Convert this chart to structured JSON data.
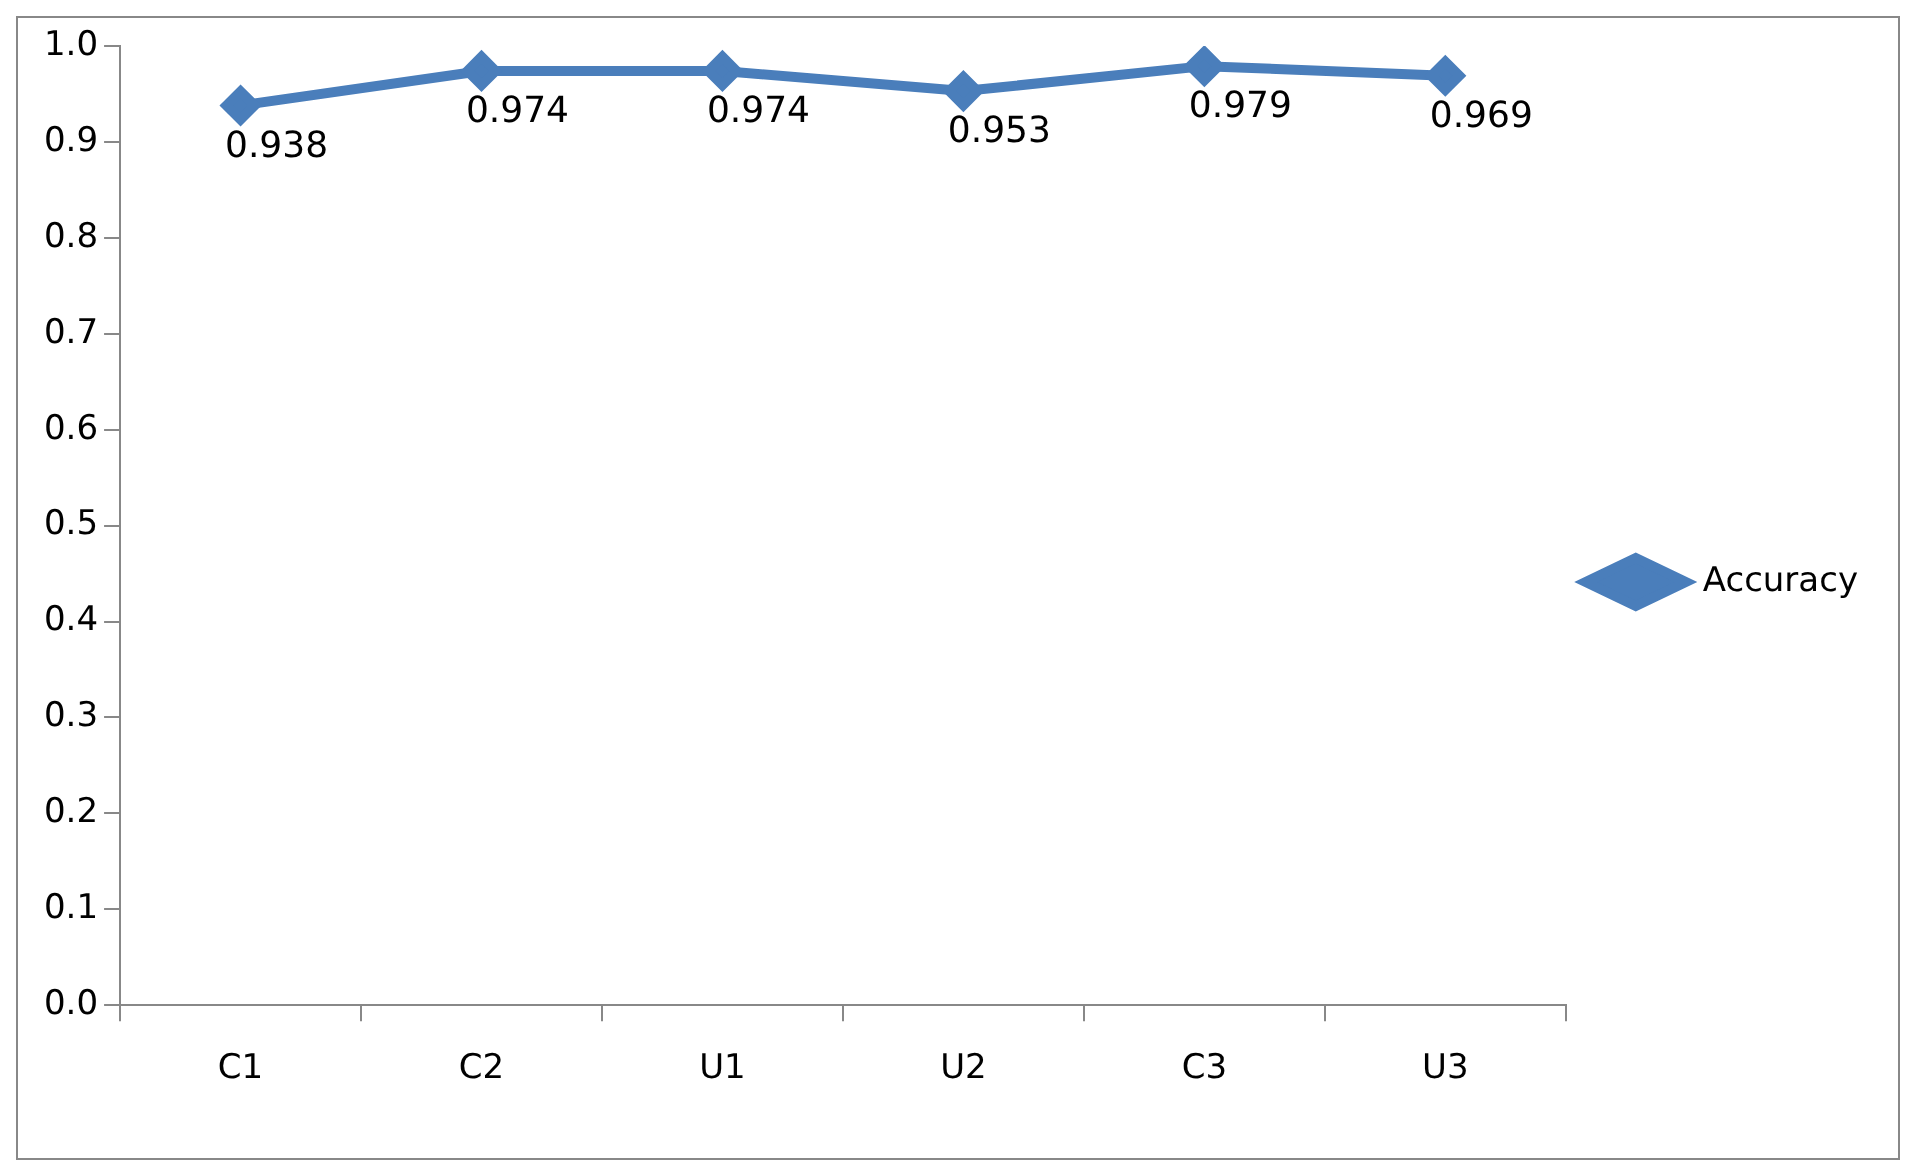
{
  "chart_data": {
    "type": "line",
    "categories": [
      "C1",
      "C2",
      "U1",
      "U2",
      "C3",
      "U3"
    ],
    "series": [
      {
        "name": "Accuracy",
        "color": "#4a7ebb",
        "values": [
          0.938,
          0.974,
          0.974,
          0.953,
          0.979,
          0.969
        ]
      }
    ],
    "ylim": [
      0,
      1
    ],
    "yticks": [
      {
        "value": 0,
        "label": "0.0"
      },
      {
        "value": 0.1,
        "label": "0.1"
      },
      {
        "value": 0.2,
        "label": "0.2"
      },
      {
        "value": 0.3,
        "label": "0.3"
      },
      {
        "value": 0.4,
        "label": "0.4"
      },
      {
        "value": 0.5,
        "label": "0.5"
      },
      {
        "value": 0.6,
        "label": "0.6"
      },
      {
        "value": 0.7,
        "label": "0.7"
      },
      {
        "value": 0.8,
        "label": "0.8"
      },
      {
        "value": 0.9,
        "label": "0.9"
      },
      {
        "value": 1,
        "label": "1.0"
      }
    ],
    "grid": false,
    "legend": "right",
    "marker": "diamond",
    "line_style": "solid",
    "data_labels": true
  }
}
